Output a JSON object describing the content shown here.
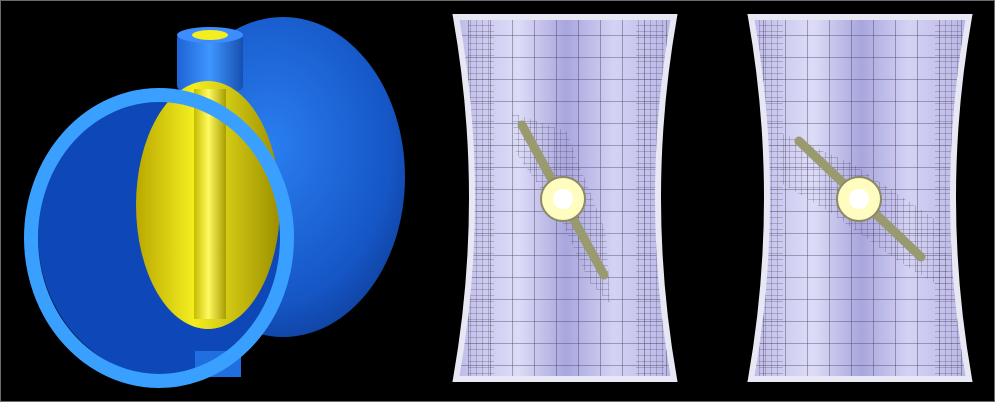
{
  "figure": {
    "panels": [
      {
        "id": "valve-3d",
        "icon": "butterfly-valve-3d-render"
      },
      {
        "id": "mesh-adapted-1",
        "icon": "adaptive-octree-mesh"
      },
      {
        "id": "mesh-adapted-2",
        "icon": "adaptive-octree-mesh"
      }
    ],
    "colors": {
      "background": "#000000",
      "pipe_blue": "#1f6fe0",
      "pipe_rim": "#3da0ff",
      "disc_yellow": "#e8e000",
      "mesh_fill": "#c7c5ec",
      "mesh_line": "#3a3850",
      "hub": "#fffcc0"
    }
  }
}
